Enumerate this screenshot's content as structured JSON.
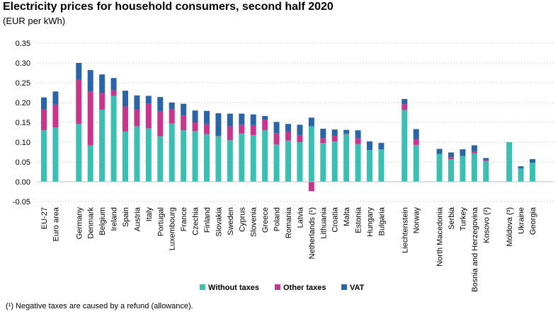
{
  "chart_data": {
    "type": "bar",
    "stacked": true,
    "title": "Electricity prices for household consumers, second half 2020",
    "subtitle": "(EUR per kWh)",
    "ylim": [
      -0.05,
      0.35
    ],
    "yticks": [
      "0.35",
      "0.30",
      "0.25",
      "0.20",
      "0.15",
      "0.10",
      "0.05",
      "0.00",
      "-0.05"
    ],
    "ytick_values": [
      0.35,
      0.3,
      0.25,
      0.2,
      0.15,
      0.1,
      0.05,
      0.0,
      -0.05
    ],
    "grid": true,
    "legend_position": "bottom-center",
    "groups": [
      [
        "EU-27",
        "Euro area"
      ],
      [
        "Germany",
        "Denmark",
        "Belgium",
        "Ireland",
        "Spain",
        "Austria",
        "Italy",
        "Portugal",
        "Luxembourg",
        "France",
        "Czechia",
        "Finland",
        "Slovakia",
        "Sweden",
        "Cyprus",
        "Slovenia",
        "Greece",
        "Poland",
        "Romania",
        "Latvia",
        "Netherlands (¹)",
        "Lithuania",
        "Croatia",
        "Malta",
        "Estonia",
        "Hungary",
        "Bulgaria"
      ],
      [
        "Liechtenstein",
        "Norway"
      ],
      [
        "North Macedonia",
        "Serbia",
        "Turkey",
        "Bosnia and Herzegovina",
        "Kosovo (²)"
      ],
      [
        "Moldova (³)",
        "Ukraine",
        "Georgia"
      ]
    ],
    "categories": [
      "EU-27",
      "Euro area",
      "Germany",
      "Denmark",
      "Belgium",
      "Ireland",
      "Spain",
      "Austria",
      "Italy",
      "Portugal",
      "Luxembourg",
      "France",
      "Czechia",
      "Finland",
      "Slovakia",
      "Sweden",
      "Cyprus",
      "Slovenia",
      "Greece",
      "Poland",
      "Romania",
      "Latvia",
      "Netherlands (¹)",
      "Lithuania",
      "Croatia",
      "Malta",
      "Estonia",
      "Hungary",
      "Bulgaria",
      "Liechtenstein",
      "Norway",
      "North Macedonia",
      "Serbia",
      "Turkey",
      "Bosnia and Herzegovina",
      "Kosovo (²)",
      "Moldova (³)",
      "Ukraine",
      "Georgia"
    ],
    "series": [
      {
        "name": "Without taxes",
        "color": "#3cbfb3",
        "values": [
          0.13,
          0.137,
          0.146,
          0.092,
          0.182,
          0.217,
          0.127,
          0.14,
          0.135,
          0.115,
          0.147,
          0.13,
          0.128,
          0.12,
          0.115,
          0.105,
          0.122,
          0.118,
          0.13,
          0.094,
          0.104,
          0.1,
          0.14,
          0.098,
          0.102,
          0.12,
          0.095,
          0.08,
          0.082,
          0.181,
          0.093,
          0.07,
          0.057,
          0.065,
          0.072,
          0.052,
          0.1,
          0.034,
          0.048
        ]
      },
      {
        "name": "Other taxes",
        "color": "#c7358c",
        "values": [
          0.053,
          0.058,
          0.112,
          0.136,
          0.043,
          0.014,
          0.063,
          0.042,
          0.062,
          0.062,
          0.037,
          0.038,
          0.022,
          0.025,
          0.002,
          0.035,
          0.022,
          0.025,
          0.027,
          0.029,
          0.022,
          0.018,
          -0.024,
          0.012,
          0.014,
          0.002,
          0.015,
          0.0,
          0.0,
          0.015,
          0.015,
          0.0,
          0.005,
          0.0,
          0.005,
          0.002,
          0.0,
          0.0,
          0.0
        ]
      },
      {
        "name": "VAT",
        "color": "#2a65a8",
        "values": [
          0.03,
          0.033,
          0.042,
          0.054,
          0.046,
          0.031,
          0.04,
          0.036,
          0.02,
          0.037,
          0.016,
          0.029,
          0.03,
          0.034,
          0.056,
          0.032,
          0.028,
          0.027,
          0.009,
          0.028,
          0.02,
          0.026,
          0.022,
          0.024,
          0.016,
          0.009,
          0.02,
          0.022,
          0.016,
          0.013,
          0.025,
          0.013,
          0.012,
          0.017,
          0.015,
          0.006,
          0.0,
          0.005,
          0.009
        ]
      }
    ]
  },
  "footnote": "(¹) Negative taxes are caused by a refund (allowance)."
}
